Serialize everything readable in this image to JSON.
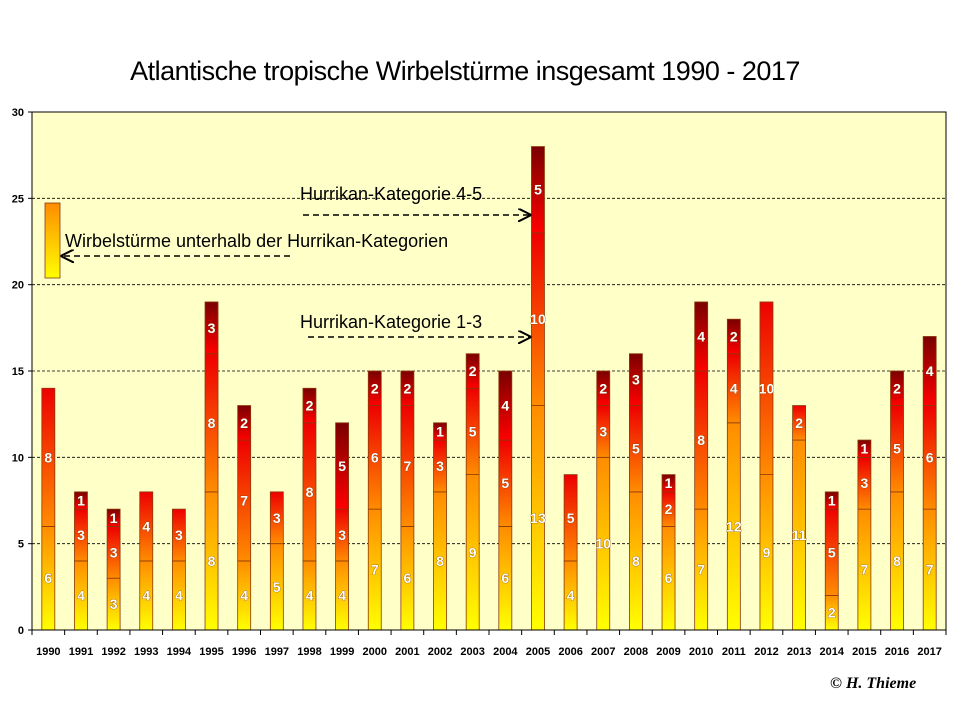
{
  "chart_data": {
    "type": "bar",
    "stacked": true,
    "title": "Atlantische tropische Wirbelstürme insgesamt 1990 - 2017",
    "ylim": [
      0,
      30
    ],
    "yticks": [
      0,
      5,
      10,
      15,
      20,
      25,
      30
    ],
    "grid": true,
    "categories": [
      "1990",
      "1991",
      "1992",
      "1993",
      "1994",
      "1995",
      "1996",
      "1997",
      "1998",
      "1999",
      "2000",
      "2001",
      "2002",
      "2003",
      "2004",
      "2005",
      "2006",
      "2007",
      "2008",
      "2009",
      "2010",
      "2011",
      "2012",
      "2013",
      "2014",
      "2015",
      "2016",
      "2017"
    ],
    "series": [
      {
        "name": "Wirbelstürme unterhalb der Hurrikan-Kategorien",
        "values": [
          6,
          4,
          3,
          4,
          4,
          8,
          4,
          5,
          4,
          4,
          7,
          6,
          8,
          9,
          6,
          13,
          4,
          10,
          8,
          6,
          7,
          12,
          9,
          11,
          2,
          7,
          8,
          7
        ]
      },
      {
        "name": "Hurrikan-Kategorie 1-3",
        "values": [
          8,
          3,
          3,
          4,
          3,
          8,
          7,
          3,
          8,
          3,
          6,
          7,
          3,
          5,
          5,
          10,
          5,
          3,
          5,
          2,
          8,
          4,
          10,
          2,
          5,
          3,
          5,
          6
        ]
      },
      {
        "name": "Hurrikan-Kategorie 4-5",
        "values": [
          0,
          1,
          1,
          0,
          0,
          3,
          2,
          0,
          2,
          5,
          2,
          2,
          1,
          2,
          4,
          5,
          0,
          2,
          3,
          1,
          4,
          2,
          0,
          0,
          1,
          1,
          2,
          4
        ]
      }
    ],
    "annotations": {
      "cat45": "Hurrikan-Kategorie 4-5",
      "cat13": "Hurrikan-Kategorie 1-3",
      "below": "Wirbelstürme unterhalb der Hurrikan-Kategorien"
    },
    "colors": {
      "plot_bg": "#ffffc8",
      "ts_bottom": "#ffff00",
      "ts_top": "#ff8c00",
      "h13_bottom": "#ff8c00",
      "h13_top": "#ee0000",
      "h45_bottom": "#ff0000",
      "h45_top": "#7a0000",
      "outline": "#8b3a0a"
    }
  },
  "copyright": "© H. Thieme"
}
